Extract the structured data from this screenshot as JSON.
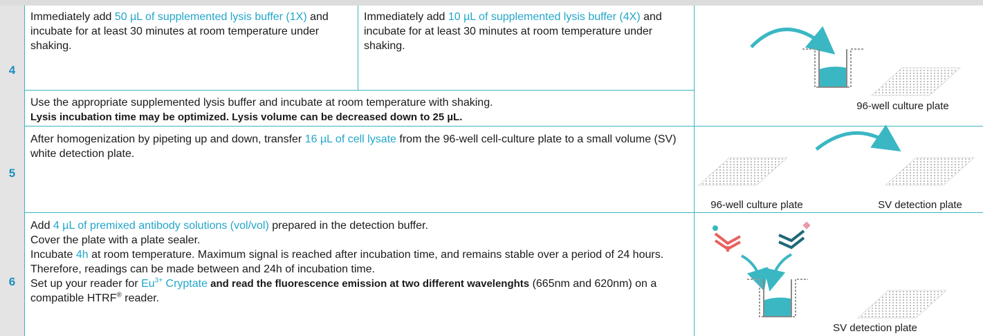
{
  "steps": [
    {
      "number": "4",
      "cells": [
        {
          "segments": [
            "Immediately add ",
            "50 µL of supplemented lysis buffer (1X)",
            " and incubate for at least 30 minutes at room temperature under shaking."
          ]
        },
        {
          "segments": [
            "Immediately add ",
            "10 µL of supplemented lysis buffer (4X)",
            " and incubate for at least 30 minutes at room temperature under shaking."
          ]
        }
      ],
      "note": {
        "lines": [
          "Use the appropriate supplemented lysis buffer and incubate at room temperature with shaking.",
          "Lysis incubation time may be optimized. Lysis volume can be decreased down to 25 µL."
        ]
      },
      "figure": {
        "labels": [
          "96-well culture plate"
        ]
      }
    },
    {
      "number": "5",
      "segments": [
        "After homogenization by pipeting up and down, transfer ",
        "16 µL of cell lysate",
        " from the 96-well cell-culture plate to a small volume (SV) white detection plate."
      ],
      "figure": {
        "labels": [
          "96-well culture plate",
          "SV detection plate"
        ]
      }
    },
    {
      "number": "6",
      "paragraphs": [
        [
          "Add ",
          "4 µL of premixed antibody solutions (vol/vol)",
          " prepared in the detection buffer."
        ],
        [
          "Cover the plate with a plate sealer."
        ],
        [
          "Incubate ",
          "4h",
          " at room temperature. Maximum signal is reached after  incubation time, and remains stable over a period of 24 hours. Therefore, readings can be made between  and 24h of incubation time."
        ],
        [
          "Set up your reader for ",
          "Eu",
          "3+",
          " Cryptate",
          " and read the fluorescence emission at two different wavelenghts",
          " (665nm and 620nm) on a compatible HTRF",
          "®",
          " reader."
        ]
      ],
      "figure": {
        "labels": [
          "SV detection plate"
        ]
      }
    }
  ]
}
